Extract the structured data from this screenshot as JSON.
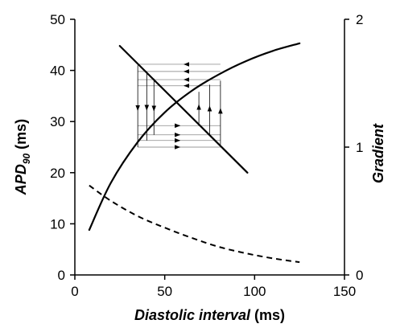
{
  "chart_data": {
    "type": "line",
    "xlabel": {
      "italic": "Diastolic interval",
      "unit": " (ms)"
    },
    "ylabel_left": {
      "base": "APD",
      "sub": "90",
      "unit": " (ms)"
    },
    "ylabel_right": "Gradient",
    "xlim": [
      0,
      150
    ],
    "ylim_left": [
      0,
      50
    ],
    "ylim_right": [
      0,
      2
    ],
    "x_ticks": [
      0,
      50,
      100,
      150
    ],
    "y_ticks_left": [
      0,
      10,
      20,
      30,
      40,
      50
    ],
    "y_ticks_right": [
      0,
      1,
      2
    ],
    "grid": false,
    "legend": "none",
    "series": [
      {
        "style": "solid",
        "axis": "left",
        "x": [
          8,
          20,
          35,
          50,
          65,
          80,
          95,
          110,
          125
        ],
        "y": [
          8.8,
          18.0,
          26.0,
          31.8,
          36.0,
          39.2,
          41.8,
          43.8,
          45.3
        ]
      },
      {
        "style": "solid",
        "axis": "left",
        "x": [
          25,
          96
        ],
        "y": [
          44.8,
          20.0
        ]
      },
      {
        "style": "dashed",
        "axis": "right",
        "x": [
          8,
          20,
          35,
          50,
          65,
          80,
          95,
          110,
          125
        ],
        "y": [
          0.7,
          0.58,
          0.46,
          0.37,
          0.29,
          0.22,
          0.17,
          0.13,
          0.1
        ]
      }
    ],
    "cobweb": {
      "x_left": 35,
      "x_right": 81,
      "verticals": [
        {
          "x": 35,
          "y1": 41,
          "y2": 25.0,
          "dir": "down"
        },
        {
          "x": 40,
          "y1": 39.8,
          "y2": 26.3,
          "dir": "down"
        },
        {
          "x": 44,
          "y1": 38.4,
          "y2": 27.4,
          "dir": "down"
        },
        {
          "x": 69,
          "y1": 29.2,
          "y2": 35.8,
          "dir": "up"
        },
        {
          "x": 75,
          "y1": 27.2,
          "y2": 37.2,
          "dir": "up"
        },
        {
          "x": 81,
          "y1": 25.5,
          "y2": 38.0,
          "dir": "up"
        }
      ],
      "horizontals": [
        {
          "y": 41.2,
          "dir": "left"
        },
        {
          "y": 39.8,
          "dir": "left"
        },
        {
          "y": 38.2,
          "dir": "left"
        },
        {
          "y": 37.0,
          "dir": "left"
        },
        {
          "y": 29.2,
          "dir": "right"
        },
        {
          "y": 27.4,
          "dir": "right"
        },
        {
          "y": 26.3,
          "dir": "right"
        },
        {
          "y": 25.0,
          "dir": "right"
        }
      ]
    }
  }
}
